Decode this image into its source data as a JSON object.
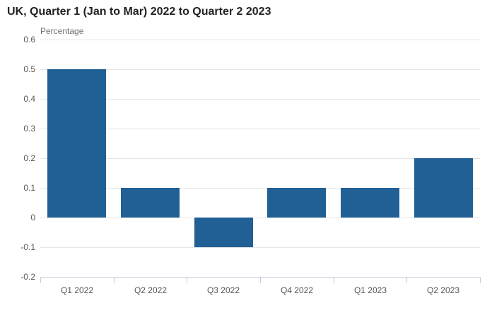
{
  "title": "UK, Quarter 1 (Jan to Mar) 2022 to Quarter 2 2023",
  "unit_label": "Percentage",
  "chart_data": {
    "type": "bar",
    "title": "UK, Quarter 1 (Jan to Mar) 2022 to Quarter 2 2023",
    "subtitle": "",
    "unit_label": "Percentage",
    "categories": [
      "Q1 2022",
      "Q2 2022",
      "Q3 2022",
      "Q4 2022",
      "Q1 2023",
      "Q2 2023"
    ],
    "values": [
      0.5,
      0.1,
      -0.1,
      0.1,
      0.1,
      0.2
    ],
    "xlabel": "",
    "ylabel": "Percentage",
    "ylim": [
      -0.2,
      0.6
    ],
    "yticks": [
      0.6,
      0.5,
      0.4,
      0.3,
      0.2,
      0.1,
      0,
      -0.1,
      -0.2
    ],
    "grid": true,
    "legend_position": "none",
    "colors": {
      "bar": "#206095",
      "grid": "#e6e6e6",
      "axis": "#c3cedb",
      "title_text": "#222222",
      "axis_text": "#585858",
      "unit_text": "#6e6e6e",
      "background": "#ffffff"
    }
  }
}
